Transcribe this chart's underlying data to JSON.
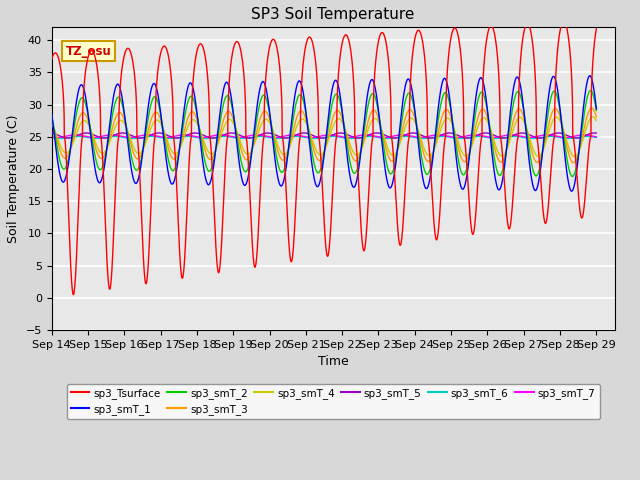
{
  "title": "SP3 Soil Temperature",
  "xlabel": "Time",
  "ylabel": "Soil Temperature (C)",
  "ylim": [
    -5,
    42
  ],
  "xlim": [
    0,
    15.5
  ],
  "x_tick_labels": [
    "Sep 14",
    "Sep 15",
    "Sep 16",
    "Sep 17",
    "Sep 18",
    "Sep 19",
    "Sep 20",
    "Sep 21",
    "Sep 22",
    "Sep 23",
    "Sep 24",
    "Sep 25",
    "Sep 26",
    "Sep 27",
    "Sep 28",
    "Sep 29"
  ],
  "annotation_text": "TZ_osu",
  "annotation_color": "#cc0000",
  "annotation_bg": "#ffffcc",
  "annotation_border": "#cc9900",
  "series_colors": {
    "sp3_Tsurface": "#ff0000",
    "sp3_smT_1": "#0000ff",
    "sp3_smT_2": "#00cc00",
    "sp3_smT_3": "#ff9900",
    "sp3_smT_4": "#cccc00",
    "sp3_smT_5": "#9900cc",
    "sp3_smT_6": "#00cccc",
    "sp3_smT_7": "#ff00ff"
  },
  "fig_bg_color": "#d8d8d8",
  "plot_bg_color": "#e8e8e8",
  "grid_color": "#ffffff",
  "title_fontsize": 11,
  "axis_fontsize": 9,
  "tick_fontsize": 8
}
